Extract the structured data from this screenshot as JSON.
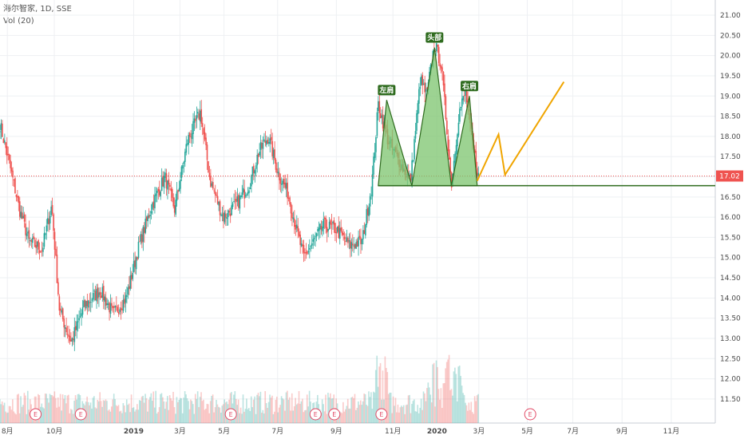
{
  "legend": {
    "symbol_line": "海尔智家, 1D, SSE",
    "volume_line": "Vol (20)"
  },
  "colors": {
    "up": "#26a69a",
    "down": "#ef5350",
    "pattern_fill": "#7cc46e",
    "pattern_line": "#2e6b1e",
    "projection": "#f0a500",
    "price_tag": "#ef5350"
  },
  "chart_data": {
    "type": "candlestick",
    "y_range": [
      11.3,
      21.1
    ],
    "y_ticks": [
      "21.00",
      "20.50",
      "20.00",
      "19.50",
      "19.00",
      "18.50",
      "18.00",
      "17.50",
      "17.00",
      "16.50",
      "16.00",
      "15.50",
      "15.00",
      "14.50",
      "14.00",
      "13.50",
      "13.00",
      "12.50",
      "12.00",
      "11.50"
    ],
    "x_ticks": [
      "8月",
      "10月",
      "2019",
      "3月",
      "5月",
      "7月",
      "9月",
      "11月",
      "2020",
      "3月",
      "5月",
      "7月",
      "9月",
      "11月"
    ],
    "last_price": "17.02",
    "price_series_anchors": [
      {
        "t": 0.0,
        "p": 18.3
      },
      {
        "t": 0.012,
        "p": 17.5
      },
      {
        "t": 0.03,
        "p": 16.2
      },
      {
        "t": 0.045,
        "p": 15.4
      },
      {
        "t": 0.065,
        "p": 15.2
      },
      {
        "t": 0.08,
        "p": 16.3
      },
      {
        "t": 0.092,
        "p": 13.7
      },
      {
        "t": 0.11,
        "p": 12.9
      },
      {
        "t": 0.13,
        "p": 13.8
      },
      {
        "t": 0.155,
        "p": 14.2
      },
      {
        "t": 0.175,
        "p": 13.6
      },
      {
        "t": 0.195,
        "p": 14.0
      },
      {
        "t": 0.215,
        "p": 15.3
      },
      {
        "t": 0.235,
        "p": 16.3
      },
      {
        "t": 0.255,
        "p": 17.0
      },
      {
        "t": 0.27,
        "p": 16.2
      },
      {
        "t": 0.29,
        "p": 17.9
      },
      {
        "t": 0.31,
        "p": 18.6
      },
      {
        "t": 0.325,
        "p": 16.9
      },
      {
        "t": 0.345,
        "p": 16.0
      },
      {
        "t": 0.365,
        "p": 16.3
      },
      {
        "t": 0.385,
        "p": 16.8
      },
      {
        "t": 0.4,
        "p": 17.6
      },
      {
        "t": 0.415,
        "p": 18.0
      },
      {
        "t": 0.43,
        "p": 17.1
      },
      {
        "t": 0.445,
        "p": 16.6
      },
      {
        "t": 0.46,
        "p": 15.6
      },
      {
        "t": 0.47,
        "p": 15.0
      },
      {
        "t": 0.485,
        "p": 15.4
      },
      {
        "t": 0.5,
        "p": 15.8
      },
      {
        "t": 0.52,
        "p": 15.7
      },
      {
        "t": 0.54,
        "p": 15.3
      },
      {
        "t": 0.56,
        "p": 15.4
      },
      {
        "t": 0.575,
        "p": 16.8
      },
      {
        "t": 0.585,
        "p": 18.8
      },
      {
        "t": 0.6,
        "p": 17.9
      },
      {
        "t": 0.62,
        "p": 17.3
      },
      {
        "t": 0.635,
        "p": 16.9
      },
      {
        "t": 0.65,
        "p": 19.4
      },
      {
        "t": 0.66,
        "p": 19.0
      },
      {
        "t": 0.672,
        "p": 20.3
      },
      {
        "t": 0.682,
        "p": 19.8
      },
      {
        "t": 0.69,
        "p": 18.4
      },
      {
        "t": 0.698,
        "p": 16.8
      },
      {
        "t": 0.71,
        "p": 18.6
      },
      {
        "t": 0.72,
        "p": 19.1
      },
      {
        "t": 0.73,
        "p": 17.9
      },
      {
        "t": 0.74,
        "p": 17.0
      }
    ],
    "volume_scale": [
      0,
      1
    ],
    "pattern": {
      "labels": [
        "左肩",
        "头部",
        "右肩"
      ],
      "neckline": 16.78,
      "left_shoulder": {
        "t_start": 0.585,
        "t_peak": 0.598,
        "t_end": 0.637,
        "peak": 18.9
      },
      "head": {
        "t_start": 0.637,
        "t_peak": 0.672,
        "t_end": 0.698,
        "peak": 20.2
      },
      "right_shoulder": {
        "t_start": 0.698,
        "t_peak": 0.726,
        "t_end": 0.738,
        "peak": 19.0
      }
    },
    "projection": [
      {
        "t": 0.738,
        "p": 16.9
      },
      {
        "t": 0.771,
        "p": 18.05
      },
      {
        "t": 0.781,
        "p": 17.05
      },
      {
        "t": 0.872,
        "p": 19.35
      }
    ],
    "events": [
      "E",
      "E",
      "E",
      "E",
      "E",
      "E",
      "E"
    ]
  }
}
